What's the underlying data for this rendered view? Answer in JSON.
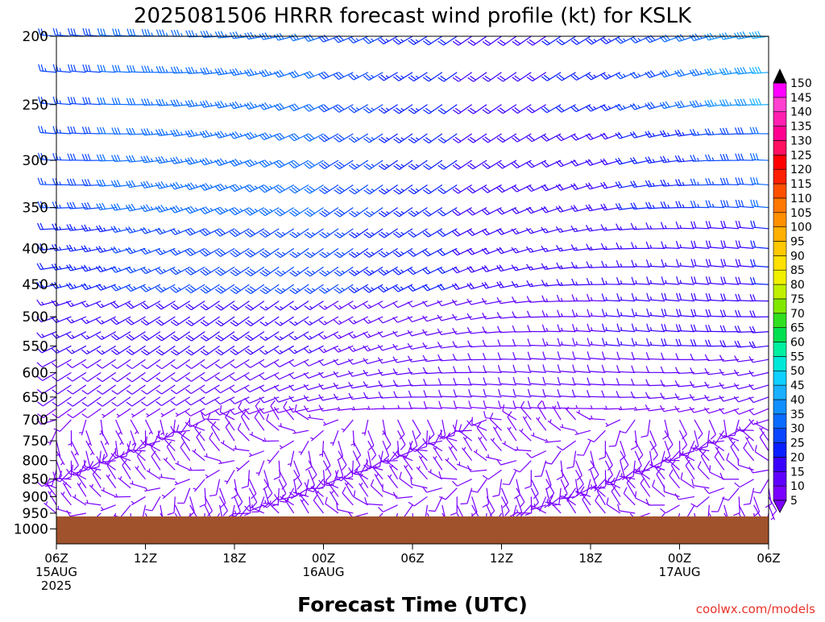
{
  "chart_data": {
    "type": "wind-barb-time-height",
    "title": "2025081506 HRRR forecast wind profile (kt) for KSLK",
    "xlabel": "Forecast Time (UTC)",
    "ylabel": "",
    "credit": "coolwx.com/models",
    "x_ticks": [
      {
        "hour": 0,
        "lines": [
          "06Z",
          "15AUG",
          "2025"
        ]
      },
      {
        "hour": 6,
        "lines": [
          "12Z"
        ]
      },
      {
        "hour": 12,
        "lines": [
          "18Z"
        ]
      },
      {
        "hour": 18,
        "lines": [
          "00Z",
          "16AUG"
        ]
      },
      {
        "hour": 24,
        "lines": [
          "06Z"
        ]
      },
      {
        "hour": 30,
        "lines": [
          "12Z"
        ]
      },
      {
        "hour": 36,
        "lines": [
          "18Z"
        ]
      },
      {
        "hour": 42,
        "lines": [
          "00Z",
          "17AUG"
        ]
      },
      {
        "hour": 48,
        "lines": [
          "06Z"
        ]
      }
    ],
    "x_range_hours": [
      0,
      48
    ],
    "y_ticks": [
      200,
      250,
      300,
      350,
      400,
      450,
      500,
      550,
      600,
      650,
      700,
      750,
      800,
      850,
      900,
      950,
      1000
    ],
    "y_range_hpa": [
      200,
      1050
    ],
    "y_scale": "log-pressure, inverted",
    "surface": {
      "pressure_hpa": 960,
      "color": "#a0522d"
    },
    "levels_hpa": [
      200,
      225,
      250,
      275,
      300,
      325,
      350,
      375,
      400,
      425,
      450,
      475,
      500,
      525,
      550,
      575,
      600,
      625,
      650,
      675,
      700,
      725,
      750,
      775,
      800,
      825,
      850,
      875,
      900,
      925,
      950
    ],
    "hours": [
      0,
      1,
      2,
      3,
      4,
      5,
      6,
      7,
      8,
      9,
      10,
      11,
      12,
      13,
      14,
      15,
      16,
      17,
      18,
      19,
      20,
      21,
      22,
      23,
      24,
      25,
      26,
      27,
      28,
      29,
      30,
      31,
      32,
      33,
      34,
      35,
      36,
      37,
      38,
      39,
      40,
      41,
      42,
      43,
      44,
      45,
      46,
      47,
      48
    ],
    "colorbar": {
      "ticks": [
        5,
        10,
        15,
        20,
        25,
        30,
        35,
        40,
        45,
        50,
        55,
        60,
        65,
        70,
        75,
        80,
        85,
        90,
        95,
        100,
        105,
        110,
        115,
        120,
        125,
        130,
        135,
        140,
        145,
        150
      ],
      "colors": [
        "#7a00ff",
        "#6000ff",
        "#3a00ff",
        "#0a1fff",
        "#0a46ff",
        "#0a6bff",
        "#1090ff",
        "#18b0ff",
        "#10d0ff",
        "#00e8d8",
        "#00f0a0",
        "#00e050",
        "#30e020",
        "#80e800",
        "#c0f000",
        "#f0f000",
        "#ffe000",
        "#ffc800",
        "#ffb000",
        "#ff9000",
        "#ff7800",
        "#ff5000",
        "#ff2000",
        "#ff0000",
        "#ff1060",
        "#ff0090",
        "#ff20b0",
        "#ff40d0",
        "#ff00ff"
      ]
    }
  }
}
